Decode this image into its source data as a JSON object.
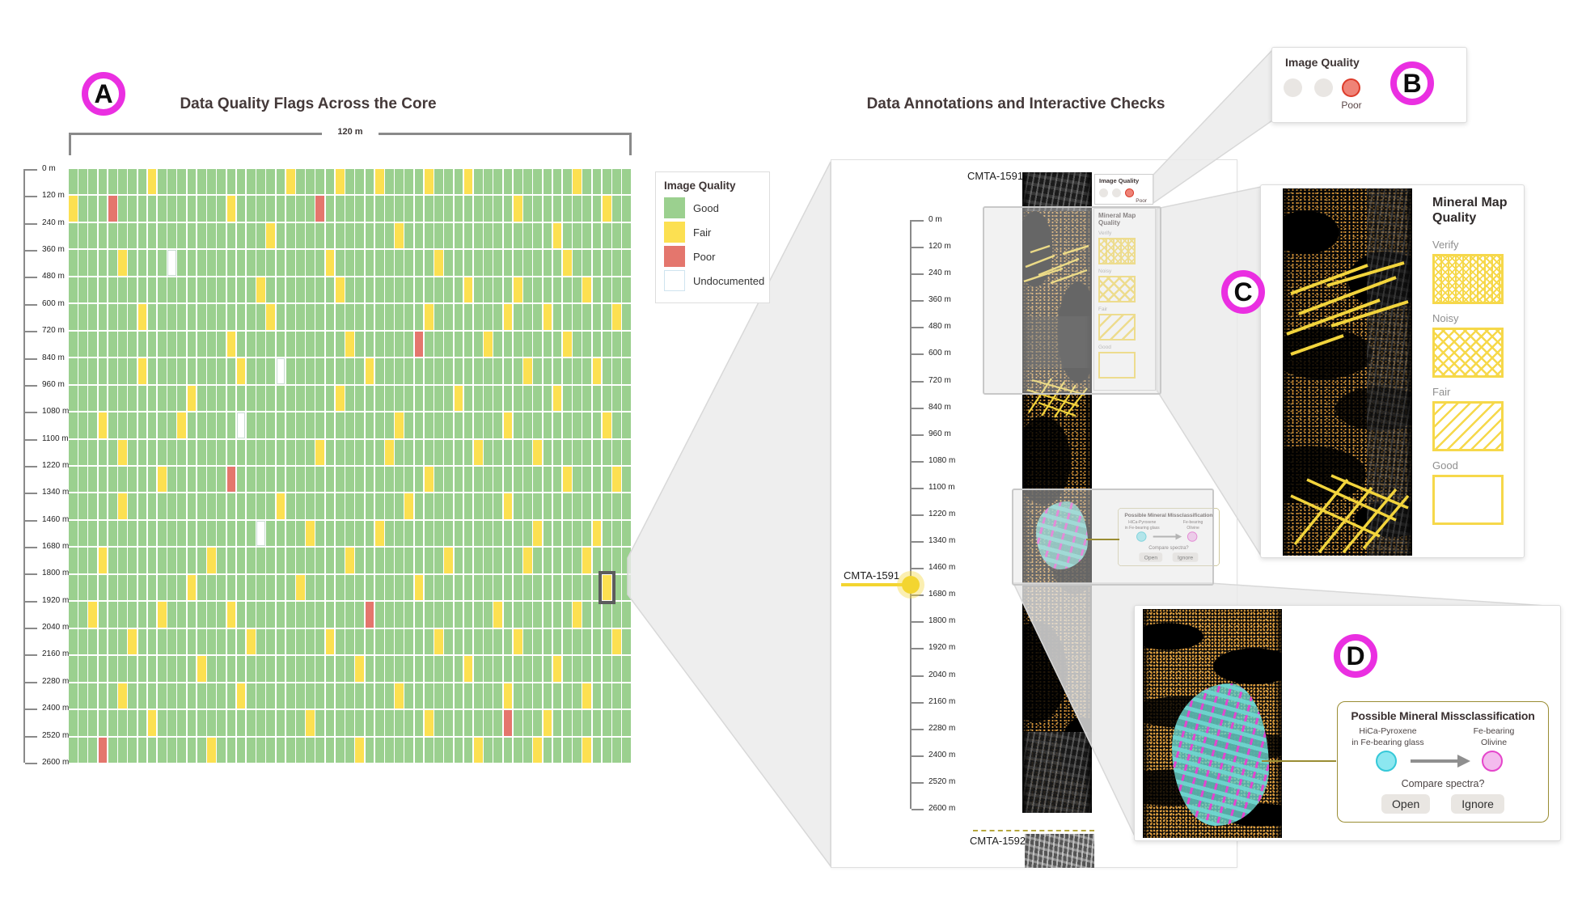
{
  "titles": {
    "left": "Data Quality Flags Across the Core",
    "right": "Data Annotations and Interactive Checks"
  },
  "badges": {
    "a": "A",
    "b": "B",
    "c": "C",
    "d": "D"
  },
  "scale_label": "120 m",
  "depth_labels": [
    "0 m",
    "120 m",
    "240 m",
    "360 m",
    "480 m",
    "600 m",
    "720 m",
    "840 m",
    "960 m",
    "1080 m",
    "1100 m",
    "1220 m",
    "1340 m",
    "1460 m",
    "1680 m",
    "1800 m",
    "1920 m",
    "2040 m",
    "2160 m",
    "2280 m",
    "2400 m",
    "2520 m",
    "2600 m"
  ],
  "image_quality_legend": {
    "title": "Image Quality",
    "items": [
      {
        "label": "Good",
        "color": "#9bd08f"
      },
      {
        "label": "Fair",
        "color": "#fce051"
      },
      {
        "label": "Poor",
        "color": "#e4766d"
      },
      {
        "label": "Undocumented",
        "color": "#ffffff"
      }
    ]
  },
  "heatmap": {
    "rows": 22,
    "cols": 57,
    "legend_key": {
      "G": "Good",
      "F": "Fair",
      "P": "Poor",
      "U": "Undocumented",
      "H": "Fair (selected)"
    },
    "flags": [
      {
        "F": [
          8,
          22,
          27,
          31,
          36,
          40,
          51
        ]
      },
      {
        "F": [
          0,
          16,
          45,
          54
        ],
        "P": [
          4,
          25
        ]
      },
      {
        "F": [
          20,
          33,
          49
        ]
      },
      {
        "F": [
          5,
          26,
          37,
          50
        ],
        "U": [
          10
        ]
      },
      {
        "F": [
          19,
          27,
          40,
          45,
          52
        ]
      },
      {
        "F": [
          7,
          20,
          36,
          44,
          48,
          55
        ]
      },
      {
        "F": [
          16,
          28,
          42,
          50
        ],
        "P": [
          35
        ]
      },
      {
        "F": [
          7,
          17,
          30,
          46,
          53
        ],
        "U": [
          21
        ]
      },
      {
        "F": [
          12,
          27,
          39,
          49
        ]
      },
      {
        "F": [
          3,
          11,
          33,
          44,
          54
        ],
        "U": [
          17
        ]
      },
      {
        "F": [
          5,
          25,
          32,
          41,
          47
        ]
      },
      {
        "F": [
          9,
          36,
          50,
          55
        ],
        "P": [
          16
        ]
      },
      {
        "F": [
          5,
          21,
          34,
          44
        ]
      },
      {
        "F": [
          24,
          31,
          47,
          53
        ],
        "U": [
          19
        ]
      },
      {
        "F": [
          3,
          14,
          28,
          38,
          46,
          52
        ]
      },
      {
        "F": [
          12,
          23,
          35
        ],
        "H": [
          54
        ]
      },
      {
        "F": [
          2,
          9,
          16,
          43,
          51
        ],
        "P": [
          30
        ]
      },
      {
        "F": [
          6,
          18,
          26,
          37,
          45,
          55
        ]
      },
      {
        "F": [
          13,
          29,
          40,
          49
        ]
      },
      {
        "F": [
          5,
          17,
          33,
          44,
          52
        ]
      },
      {
        "F": [
          8,
          24,
          36,
          48
        ],
        "P": [
          44
        ]
      },
      {
        "F": [
          14,
          29,
          41,
          47,
          52
        ],
        "P": [
          3
        ]
      }
    ]
  },
  "core_view": {
    "core_label": "CMTA-1591",
    "marker_label": "CMTA-1591",
    "next_core_label": "CMTA-1592",
    "image_quality_panel": {
      "title": "Image Quality",
      "selected": "Poor"
    }
  },
  "mineral_map_quality": {
    "title": "Mineral Map Quality",
    "items": [
      "Verify",
      "Noisy",
      "Fair",
      "Good"
    ]
  },
  "panelB": {
    "title": "Image Quality",
    "selected": "Poor"
  },
  "dialog": {
    "title": "Possible Mineral Missclassification",
    "from_lines": [
      "HiCa-Pyroxene",
      "in Fe-bearing glass"
    ],
    "to_lines": [
      "Fe-bearing",
      "Olivine"
    ],
    "question": "Compare spectra?",
    "open_label": "Open",
    "ignore_label": "Ignore"
  },
  "colors": {
    "badge_ring": "#ea2fe1",
    "good": "#9bd08f",
    "fair": "#fce051",
    "poor": "#e4766d",
    "hatch_yellow": "#f6d84a",
    "marker_yellow": "#f3d530",
    "olive_border": "#9a8d33",
    "cyan_mineral": "#8ce7f0",
    "pink_mineral": "#f4bbee",
    "beam_gray": "#ededed"
  }
}
